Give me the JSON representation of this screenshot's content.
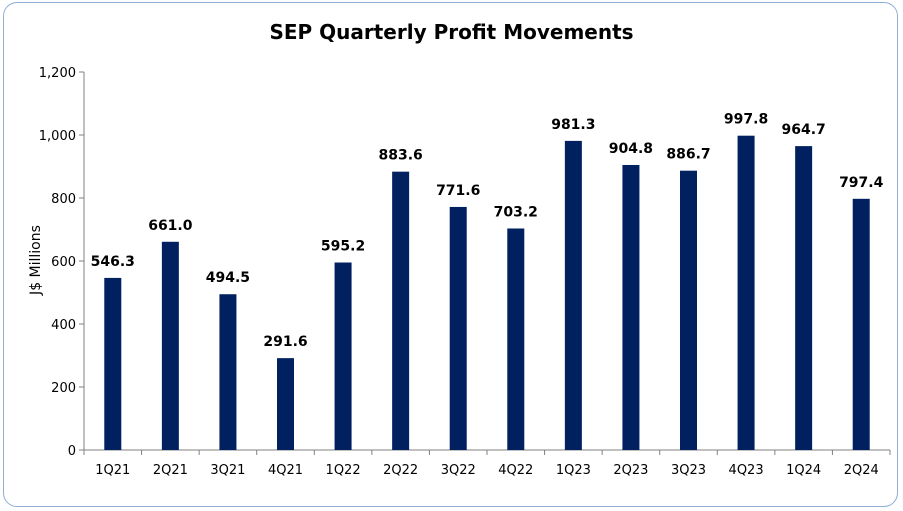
{
  "chart_data": {
    "type": "bar",
    "title": "SEP Quarterly Profit Movements",
    "xlabel": "",
    "ylabel": "J$ Millions",
    "categories": [
      "1Q21",
      "2Q21",
      "3Q21",
      "4Q21",
      "1Q22",
      "2Q22",
      "3Q22",
      "4Q22",
      "1Q23",
      "2Q23",
      "3Q23",
      "4Q23",
      "1Q24",
      "2Q24"
    ],
    "values": [
      546.3,
      661.0,
      494.5,
      291.6,
      595.2,
      883.6,
      771.6,
      703.2,
      981.3,
      904.8,
      886.7,
      997.8,
      964.7,
      797.4
    ],
    "value_labels": [
      "546.3",
      "661.0",
      "494.5",
      "291.6",
      "595.2",
      "883.6",
      "771.6",
      "703.2",
      "981.3",
      "904.8",
      "886.7",
      "997.8",
      "964.7",
      "797.4"
    ],
    "ylim": [
      0,
      1200
    ],
    "yticks": [
      0,
      200,
      400,
      600,
      800,
      1000,
      1200
    ],
    "ytick_labels": [
      "0",
      "200",
      "400",
      "600",
      "800",
      "1,000",
      "1,200"
    ],
    "grid": false,
    "legend": "none",
    "bar_color": "#002060",
    "frame_border_color": "#8eaed3"
  }
}
